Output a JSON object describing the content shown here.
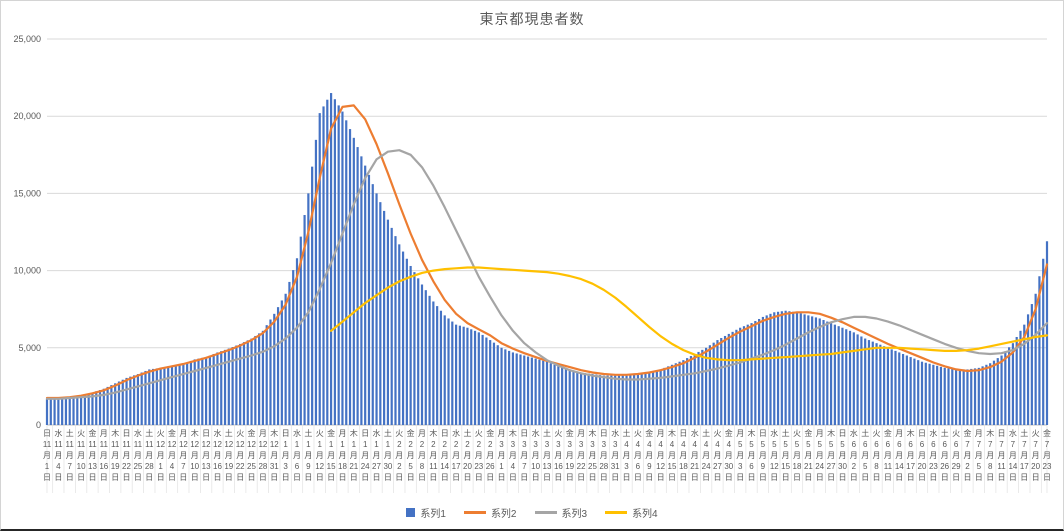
{
  "chart_data": {
    "type": "combo",
    "title": "東京都現患者数",
    "xlabel": "",
    "ylabel": "",
    "ylim": [
      0,
      25000
    ],
    "grid": true,
    "legend_position": "bottom",
    "y_ticks": [
      {
        "value": 0,
        "label": "0"
      },
      {
        "value": 5000,
        "label": "5,000"
      },
      {
        "value": 10000,
        "label": "10,000"
      },
      {
        "value": 15000,
        "label": "15,000"
      },
      {
        "value": 20000,
        "label": "20,000"
      },
      {
        "value": 25000,
        "label": "25,000"
      }
    ],
    "categories_dow": [
      "日",
      "水",
      "土",
      "火",
      "金",
      "月",
      "木",
      "日",
      "水",
      "土",
      "火",
      "金",
      "月",
      "木",
      "日",
      "水",
      "土",
      "火",
      "金",
      "月",
      "木",
      "日",
      "水",
      "土",
      "火",
      "金",
      "月",
      "木",
      "日",
      "水",
      "土",
      "火",
      "金",
      "月",
      "木",
      "日",
      "水",
      "土",
      "火",
      "金",
      "月",
      "木",
      "日",
      "水",
      "土",
      "火",
      "金",
      "月",
      "木",
      "日",
      "水",
      "土",
      "火",
      "金",
      "月",
      "木",
      "日",
      "水",
      "土",
      "火",
      "金",
      "月",
      "木",
      "日",
      "水",
      "土",
      "火",
      "金",
      "月",
      "木",
      "日",
      "水",
      "土",
      "火",
      "金",
      "月",
      "木",
      "日",
      "水",
      "土",
      "火",
      "金",
      "月",
      "木",
      "日",
      "水",
      "土",
      "火",
      "金"
    ],
    "categories_date": [
      "11月1日",
      "11月4日",
      "11月7日",
      "11月10日",
      "11月13日",
      "11月16日",
      "11月19日",
      "11月22日",
      "11月25日",
      "11月28日",
      "12月1日",
      "12月4日",
      "12月7日",
      "12月10日",
      "12月13日",
      "12月16日",
      "12月19日",
      "12月22日",
      "12月25日",
      "12月28日",
      "12月31日",
      "1月3日",
      "1月6日",
      "1月9日",
      "1月12日",
      "1月15日",
      "1月18日",
      "1月21日",
      "1月24日",
      "1月27日",
      "1月30日",
      "2月2日",
      "2月5日",
      "2月8日",
      "2月11日",
      "2月14日",
      "2月17日",
      "2月20日",
      "2月23日",
      "2月26日",
      "3月1日",
      "3月4日",
      "3月7日",
      "3月10日",
      "3月13日",
      "3月16日",
      "3月19日",
      "3月22日",
      "3月25日",
      "3月28日",
      "3月31日",
      "4月3日",
      "4月6日",
      "4月9日",
      "4月12日",
      "4月15日",
      "4月18日",
      "4月21日",
      "4月24日",
      "4月27日",
      "4月30日",
      "5月3日",
      "5月6日",
      "5月9日",
      "5月12日",
      "5月15日",
      "5月18日",
      "5月21日",
      "5月24日",
      "5月27日",
      "5月30日",
      "6月2日",
      "6月5日",
      "6月8日",
      "6月11日",
      "6月14日",
      "6月17日",
      "6月20日",
      "6月23日",
      "6月26日",
      "6月29日",
      "7月2日",
      "7月5日",
      "7月8日",
      "7月11日",
      "7月14日",
      "7月17日",
      "7月20日",
      "7月23日"
    ],
    "series": [
      {
        "name": "系列1",
        "type": "bar",
        "color": "#4472C4",
        "values": [
          1700,
          1650,
          1750,
          1900,
          2100,
          2350,
          2700,
          3050,
          3300,
          3600,
          3700,
          3850,
          3950,
          4250,
          4400,
          4700,
          4950,
          5250,
          5600,
          6100,
          7200,
          8500,
          10800,
          15000,
          20200,
          21500,
          20300,
          18600,
          16800,
          15000,
          13300,
          11700,
          10300,
          9100,
          8000,
          7100,
          6500,
          6300,
          6000,
          5500,
          5000,
          4700,
          4500,
          4300,
          4100,
          3800,
          3600,
          3400,
          3300,
          3200,
          3200,
          3200,
          3300,
          3400,
          3600,
          3900,
          4200,
          4600,
          5000,
          5500,
          5900,
          6300,
          6600,
          7000,
          7300,
          7400,
          7300,
          7100,
          6900,
          6600,
          6300,
          6000,
          5600,
          5300,
          5000,
          4700,
          4400,
          4100,
          3900,
          3700,
          3600,
          3600,
          3700,
          4000,
          4500,
          5300,
          6500,
          8500,
          11900
        ]
      },
      {
        "name": "系列2",
        "type": "line",
        "color": "#ED7D31",
        "values": [
          1750,
          1750,
          1800,
          1900,
          2050,
          2250,
          2550,
          2900,
          3200,
          3450,
          3650,
          3800,
          3950,
          4150,
          4350,
          4600,
          4850,
          5150,
          5500,
          5950,
          6700,
          7800,
          9600,
          12500,
          16000,
          19200,
          20600,
          20700,
          19800,
          18200,
          16300,
          14300,
          12400,
          10700,
          9300,
          8100,
          7200,
          6600,
          6200,
          5800,
          5300,
          4950,
          4650,
          4400,
          4150,
          3950,
          3750,
          3550,
          3400,
          3300,
          3250,
          3250,
          3300,
          3400,
          3550,
          3750,
          4000,
          4350,
          4750,
          5200,
          5650,
          6050,
          6400,
          6750,
          7000,
          7200,
          7300,
          7300,
          7200,
          6950,
          6650,
          6300,
          5950,
          5600,
          5250,
          4950,
          4650,
          4350,
          4050,
          3800,
          3600,
          3500,
          3550,
          3750,
          4100,
          4700,
          5700,
          7500,
          10400
        ]
      },
      {
        "name": "系列3",
        "type": "line",
        "color": "#A5A5A5",
        "values": [
          1700,
          1700,
          1750,
          1800,
          1850,
          1950,
          2100,
          2300,
          2500,
          2700,
          2900,
          3100,
          3300,
          3500,
          3700,
          3900,
          4100,
          4300,
          4500,
          4750,
          5100,
          5600,
          6300,
          7300,
          8800,
          10500,
          12400,
          14300,
          16000,
          17200,
          17700,
          17800,
          17500,
          16700,
          15500,
          14100,
          12600,
          11100,
          9600,
          8300,
          7100,
          6100,
          5300,
          4700,
          4200,
          3850,
          3550,
          3350,
          3200,
          3100,
          3000,
          2950,
          2950,
          3000,
          3050,
          3150,
          3250,
          3350,
          3500,
          3650,
          3850,
          4050,
          4300,
          4550,
          4850,
          5200,
          5600,
          6000,
          6350,
          6650,
          6850,
          7000,
          7000,
          6900,
          6700,
          6450,
          6150,
          5850,
          5550,
          5250,
          5000,
          4800,
          4650,
          4600,
          4650,
          4850,
          5250,
          5850,
          6600
        ]
      },
      {
        "name": "系列4",
        "type": "line",
        "color": "#FFC000",
        "values": [
          null,
          null,
          null,
          null,
          null,
          null,
          null,
          null,
          null,
          null,
          null,
          null,
          null,
          null,
          null,
          null,
          null,
          null,
          null,
          null,
          null,
          null,
          null,
          null,
          null,
          6100,
          6700,
          7300,
          7900,
          8400,
          8900,
          9300,
          9600,
          9850,
          10000,
          10100,
          10150,
          10200,
          10200,
          10150,
          10100,
          10050,
          10000,
          9950,
          9900,
          9800,
          9650,
          9450,
          9150,
          8750,
          8250,
          7650,
          7000,
          6350,
          5750,
          5250,
          4850,
          4550,
          4350,
          4250,
          4200,
          4200,
          4250,
          4300,
          4350,
          4400,
          4450,
          4500,
          4550,
          4600,
          4700,
          4800,
          4900,
          5000,
          5000,
          5000,
          4950,
          4900,
          4850,
          4800,
          4800,
          4850,
          4950,
          5100,
          5250,
          5400,
          5550,
          5700,
          5800
        ]
      }
    ]
  }
}
